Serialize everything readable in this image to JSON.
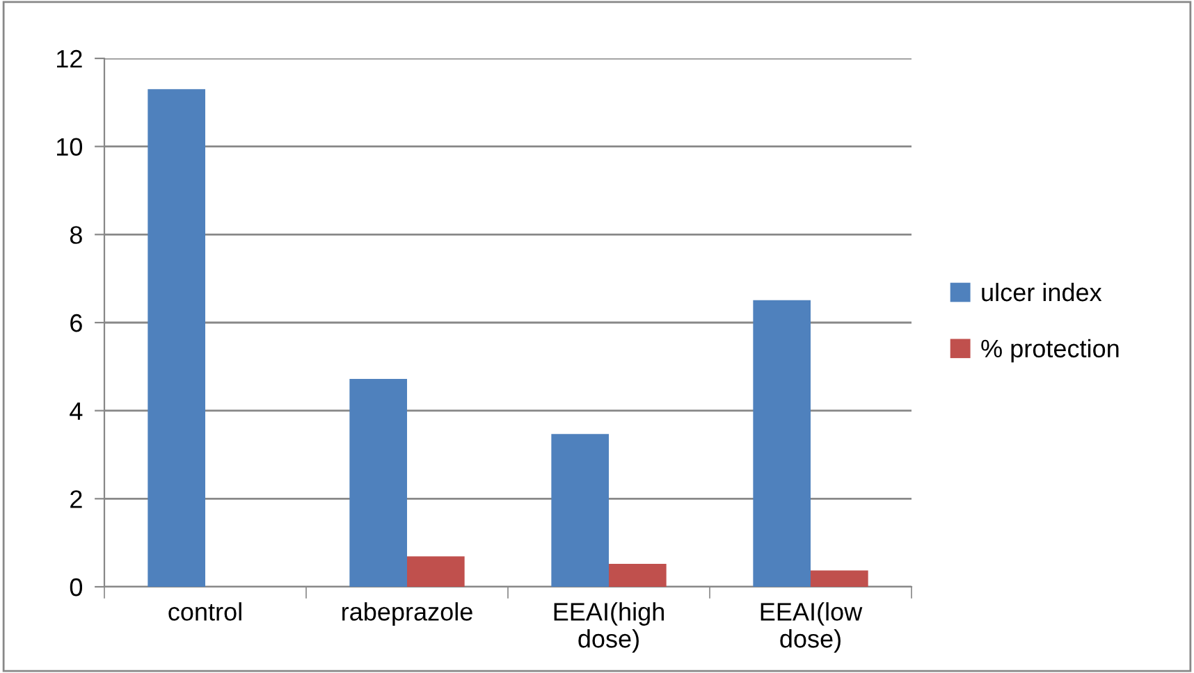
{
  "chart_data": {
    "type": "bar",
    "categories": [
      "control",
      "rabeprazole",
      "EEAI(high\ndose)",
      "EEAI(low\ndose)"
    ],
    "series": [
      {
        "name": "ulcer index",
        "color": "#4f81bd",
        "values": [
          11.3,
          4.72,
          3.47,
          6.51
        ]
      },
      {
        "name": "% protection",
        "color": "#c0504d",
        "values": [
          0,
          0.69,
          0.52,
          0.37
        ]
      }
    ],
    "ylim": [
      0,
      12
    ],
    "yticks": [
      0,
      2,
      4,
      6,
      8,
      10,
      12
    ],
    "grid": "y",
    "legend": "right"
  }
}
